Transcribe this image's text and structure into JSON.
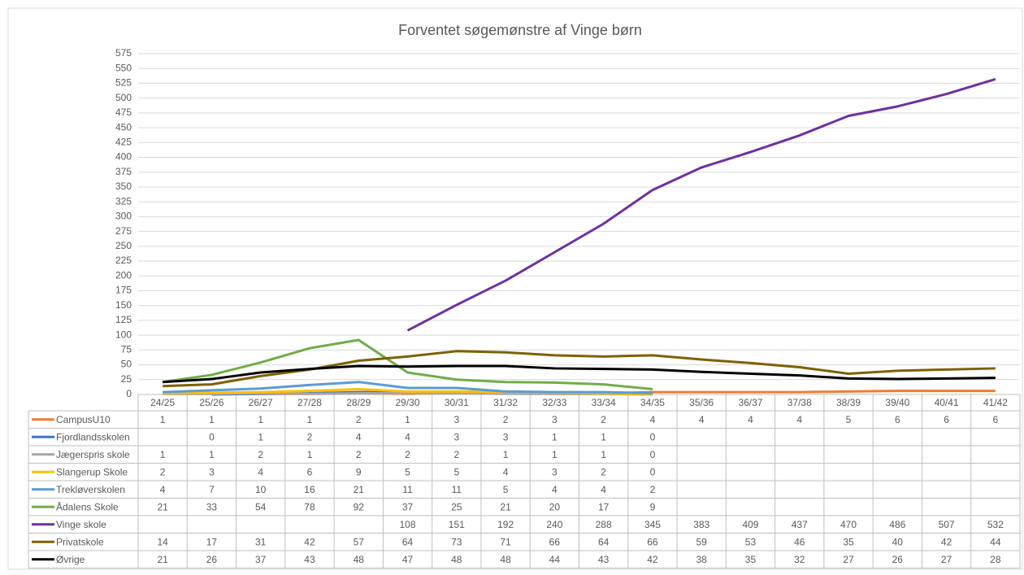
{
  "chart_data": {
    "type": "line",
    "title": "Forventet søgemønstre af Vinge børn",
    "categories": [
      "24/25",
      "25/26",
      "26/27",
      "27/28",
      "28/29",
      "29/30",
      "30/31",
      "31/32",
      "32/33",
      "33/34",
      "34/35",
      "35/36",
      "36/37",
      "37/38",
      "38/39",
      "39/40",
      "40/41",
      "41/42"
    ],
    "ylim": [
      0,
      575
    ],
    "yticks": [
      0,
      25,
      50,
      75,
      100,
      125,
      150,
      175,
      200,
      225,
      250,
      275,
      300,
      325,
      350,
      375,
      400,
      425,
      450,
      475,
      500,
      525,
      550,
      575
    ],
    "grid": true,
    "series": [
      {
        "name": "CampusU10",
        "color": "#ed7d31",
        "values": [
          1,
          1,
          1,
          1,
          2,
          1,
          3,
          2,
          3,
          2,
          4,
          4,
          4,
          4,
          5,
          6,
          6,
          6
        ]
      },
      {
        "name": "Fjordlandsskolen",
        "color": "#4472c4",
        "values": [
          null,
          0,
          1,
          2,
          4,
          4,
          3,
          3,
          1,
          1,
          0,
          null,
          null,
          null,
          null,
          null,
          null,
          null
        ]
      },
      {
        "name": "Jægerspris skole",
        "color": "#a5a5a5",
        "values": [
          1,
          1,
          2,
          1,
          2,
          2,
          2,
          1,
          1,
          1,
          0,
          null,
          null,
          null,
          null,
          null,
          null,
          null
        ]
      },
      {
        "name": "Slangerup Skole",
        "color": "#ffc000",
        "values": [
          2,
          3,
          4,
          6,
          9,
          5,
          5,
          4,
          3,
          2,
          0,
          null,
          null,
          null,
          null,
          null,
          null,
          null
        ]
      },
      {
        "name": "Trekløverskolen",
        "color": "#5b9bd5",
        "values": [
          4,
          7,
          10,
          16,
          21,
          11,
          11,
          5,
          4,
          4,
          2,
          null,
          null,
          null,
          null,
          null,
          null,
          null
        ]
      },
      {
        "name": "Ådalens Skole",
        "color": "#70ad47",
        "values": [
          21,
          33,
          54,
          78,
          92,
          37,
          25,
          21,
          20,
          17,
          9,
          null,
          null,
          null,
          null,
          null,
          null,
          null
        ]
      },
      {
        "name": "Vinge skole",
        "color": "#7030a0",
        "values": [
          null,
          null,
          null,
          null,
          null,
          108,
          151,
          192,
          240,
          288,
          345,
          383,
          409,
          437,
          470,
          486,
          507,
          532
        ]
      },
      {
        "name": "Privatskole",
        "color": "#7f6000",
        "values": [
          14,
          17,
          31,
          42,
          57,
          64,
          73,
          71,
          66,
          64,
          66,
          59,
          53,
          46,
          35,
          40,
          42,
          44
        ]
      },
      {
        "name": "Øvrige",
        "color": "#000000",
        "values": [
          21,
          26,
          37,
          43,
          48,
          47,
          48,
          48,
          44,
          43,
          42,
          38,
          35,
          32,
          27,
          26,
          27,
          28
        ]
      }
    ]
  }
}
